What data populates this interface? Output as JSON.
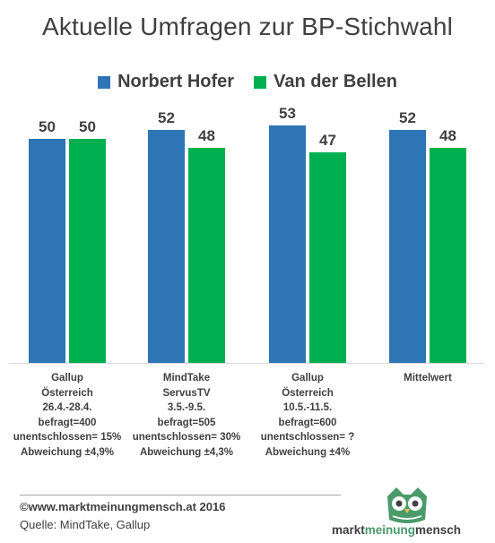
{
  "title": "Aktuelle Umfragen zur BP-Stichwahl",
  "colors": {
    "hofer": "#2e75b6",
    "vdb": "#00b050"
  },
  "chart_data": {
    "type": "bar",
    "title": "Aktuelle Umfragen zur BP-Stichwahl",
    "categories": [
      [
        "Gallup",
        "Österreich",
        "26.4.-28.4.",
        "befragt=400",
        "unentschlossen= 15%",
        "Abweichung ±4,9%"
      ],
      [
        "MindTake",
        "ServusTV",
        "3.5.-9.5.",
        "befragt=505",
        "unentschlossen= 30%",
        "Abweichung ±4,3%"
      ],
      [
        "Gallup",
        "Österreich",
        "10.5.-11.5.",
        "befragt=600",
        "unentschlossen= ?",
        "Abweichung ±4%"
      ],
      [
        "Mittelwert"
      ]
    ],
    "series": [
      {
        "name": "Norbert Hofer",
        "values": [
          50,
          52,
          53,
          52
        ]
      },
      {
        "name": "Van der Bellen",
        "values": [
          50,
          48,
          47,
          48
        ]
      }
    ],
    "ylim": [
      0,
      60
    ],
    "grid": false,
    "legend": "top"
  },
  "footer": {
    "copyright": "©www.marktmeinungmensch.at 2016",
    "source": "Quelle: MindTake, Gallup"
  },
  "logo": {
    "part1": "markt",
    "part2": "meinung",
    "part3": "mensch"
  }
}
